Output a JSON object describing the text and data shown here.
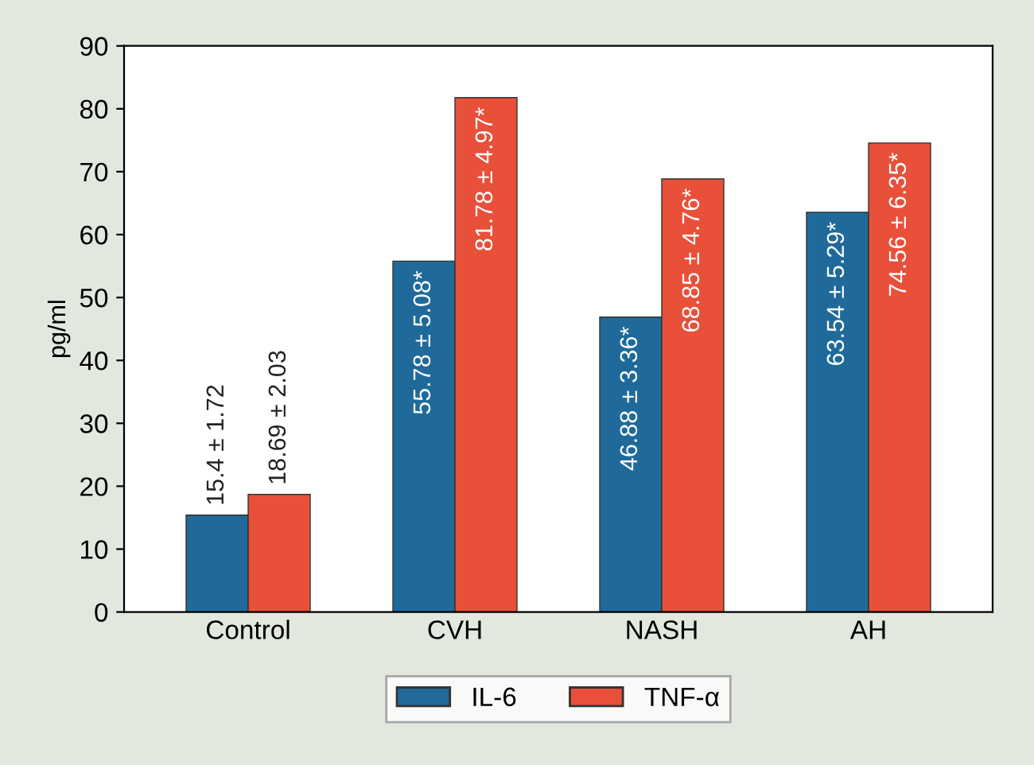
{
  "chart_data": {
    "type": "bar",
    "ylabel": "pg/ml",
    "categories": [
      "Control",
      "CVH",
      "NASH",
      "AH"
    ],
    "series": [
      {
        "name": "IL-6",
        "color": "#1f6a9a",
        "values": [
          15.4,
          55.78,
          46.88,
          63.54
        ],
        "value_labels": [
          "15.4 ± 1.72",
          "55.78 ± 5.08*",
          "46.88 ± 3.36*",
          "63.54 ± 5.29*"
        ]
      },
      {
        "name": "TNF-α",
        "color": "#e8503a",
        "values": [
          18.69,
          81.78,
          68.85,
          74.56
        ],
        "value_labels": [
          "18.69 ± 2.03",
          "81.78 ± 4.97*",
          "68.85 ± 4.76*",
          "74.56 ± 6.35*"
        ]
      }
    ],
    "ylim": [
      0,
      90
    ],
    "yticks": [
      0,
      10,
      20,
      30,
      40,
      50,
      60,
      70,
      80,
      90
    ],
    "grid": false,
    "legend": "bottom"
  }
}
